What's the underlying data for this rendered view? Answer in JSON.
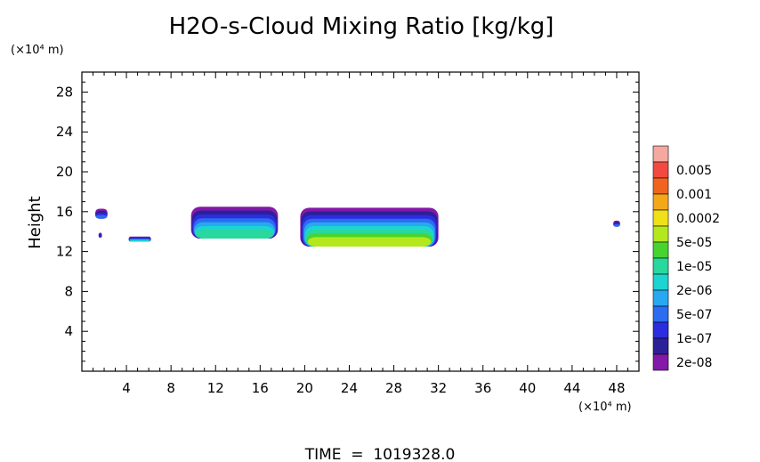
{
  "chart_data": {
    "type": "heatmap",
    "title": "H2O-s-Cloud Mixing Ratio [kg/kg]",
    "ylabel": "Height",
    "y_unit_label": "(×10⁴ m)",
    "x_unit_label": "(×10⁴ m)",
    "xlim": [
      0,
      50
    ],
    "ylim": [
      0,
      30
    ],
    "x_ticks": [
      "4",
      "8",
      "12",
      "16",
      "20",
      "24",
      "28",
      "32",
      "36",
      "40",
      "44",
      "48"
    ],
    "x_tick_values": [
      4,
      8,
      12,
      16,
      20,
      24,
      28,
      32,
      36,
      40,
      44,
      48
    ],
    "y_ticks": [
      "4",
      "8",
      "12",
      "16",
      "20",
      "24",
      "28"
    ],
    "y_tick_values": [
      4,
      8,
      12,
      16,
      20,
      24,
      28
    ],
    "footer": "TIME  =  1019328.0",
    "colorbar": {
      "labels": [
        "0.005",
        "0.001",
        "0.0002",
        "5e-05",
        "1e-05",
        "2e-06",
        "5e-07",
        "1e-07",
        "2e-08"
      ],
      "colors": [
        "#f4a8a0",
        "#f24a40",
        "#f06420",
        "#f4a818",
        "#f0e018",
        "#b4e81c",
        "#48d430",
        "#28d89c",
        "#1cd4d0",
        "#28a8f0",
        "#2c6cf0",
        "#2c2ce0",
        "#2c2098",
        "#8418a8"
      ]
    },
    "regions": [
      {
        "name": "cloud-small-left",
        "x": [
          1.2,
          2.3
        ],
        "y": [
          15.3,
          16.3
        ],
        "max_level": 3
      },
      {
        "name": "cloud-dot-left",
        "x": [
          1.5,
          1.8
        ],
        "y": [
          13.4,
          13.9
        ],
        "max_level": 2
      },
      {
        "name": "cloud-low-patch",
        "x": [
          4.2,
          6.2
        ],
        "y": [
          13.0,
          13.5
        ],
        "max_level": 5
      },
      {
        "name": "cloud-middle",
        "x": [
          9.8,
          17.6
        ],
        "y": [
          13.3,
          16.5
        ],
        "max_level": 6
      },
      {
        "name": "cloud-large",
        "x": [
          19.6,
          32.0
        ],
        "y": [
          12.5,
          16.4
        ],
        "max_level": 8
      },
      {
        "name": "cloud-small-right",
        "x": [
          47.7,
          48.3
        ],
        "y": [
          14.5,
          15.1
        ],
        "max_level": 3
      }
    ]
  }
}
